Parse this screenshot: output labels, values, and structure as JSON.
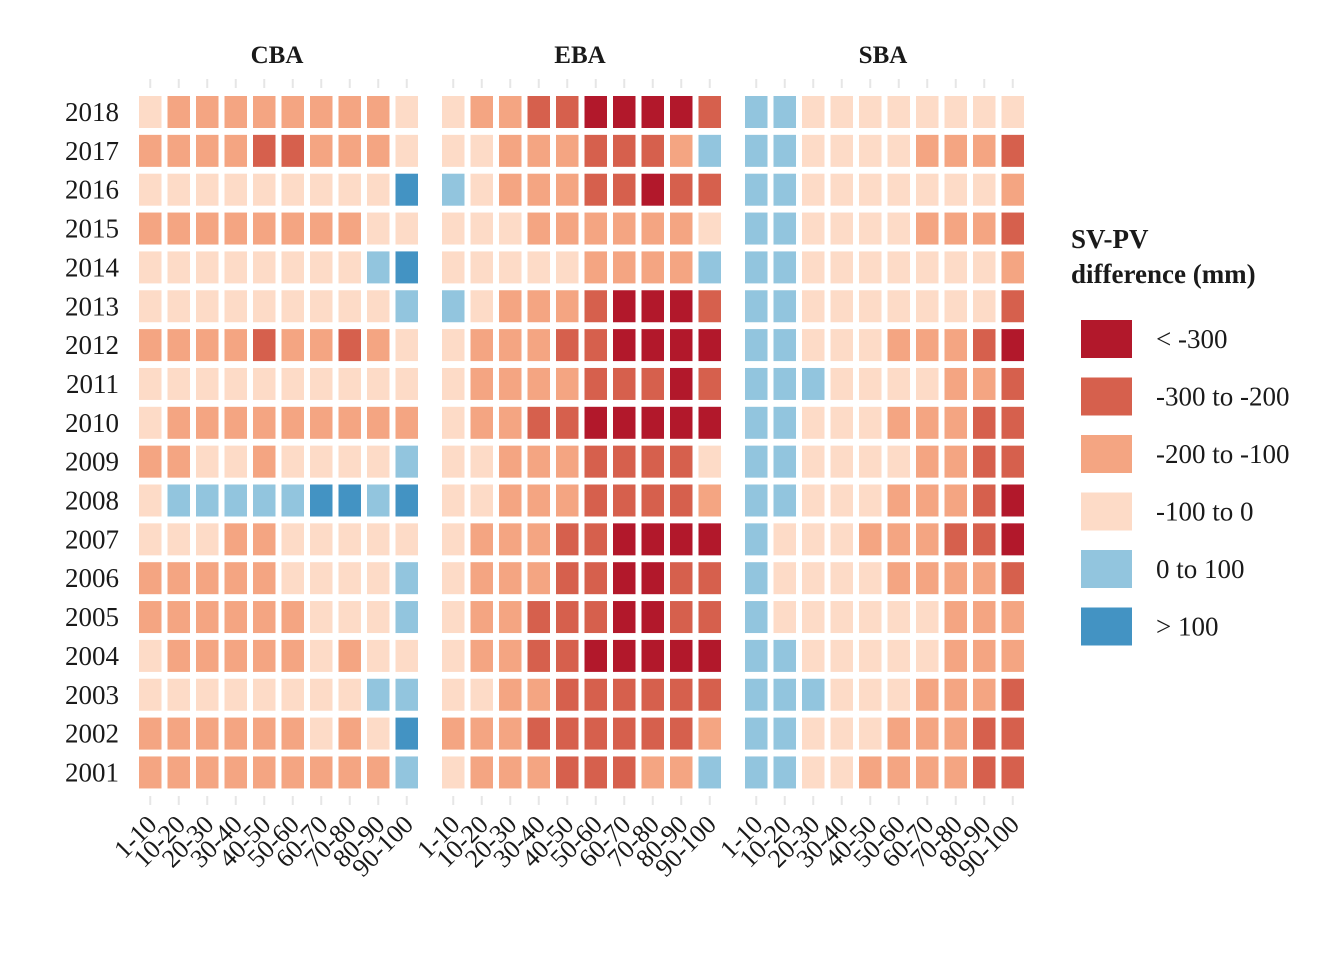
{
  "chart_data": {
    "type": "heatmap",
    "legend": {
      "title_lines": [
        "SV-PV",
        "difference (mm)"
      ],
      "placement": "right",
      "classes": [
        {
          "label": "< -300",
          "color": "#b2182b"
        },
        {
          "label": "-300 to -200",
          "color": "#d6604d"
        },
        {
          "label": "-200 to -100",
          "color": "#f4a582"
        },
        {
          "label": "-100 to 0",
          "color": "#fddbc7"
        },
        {
          "label": "0 to 100",
          "color": "#92c5de"
        },
        {
          "label": "> 100",
          "color": "#4393c3"
        }
      ]
    },
    "years": [
      "2018",
      "2017",
      "2016",
      "2015",
      "2014",
      "2013",
      "2012",
      "2011",
      "2010",
      "2009",
      "2008",
      "2007",
      "2006",
      "2005",
      "2004",
      "2003",
      "2002",
      "2001"
    ],
    "categories": [
      "1-10",
      "10-20",
      "20-30",
      "30-40",
      "40-50",
      "50-60",
      "60-70",
      "70-80",
      "80-90",
      "90-100"
    ],
    "grid": false,
    "facets": [
      {
        "name": "CBA",
        "rows": [
          [
            3,
            2,
            2,
            2,
            2,
            2,
            2,
            2,
            2,
            3
          ],
          [
            2,
            2,
            2,
            2,
            1,
            1,
            2,
            2,
            2,
            3
          ],
          [
            3,
            3,
            3,
            3,
            3,
            3,
            3,
            3,
            3,
            5
          ],
          [
            2,
            2,
            2,
            2,
            2,
            2,
            2,
            2,
            3,
            3
          ],
          [
            3,
            3,
            3,
            3,
            3,
            3,
            3,
            3,
            4,
            5
          ],
          [
            3,
            3,
            3,
            3,
            3,
            3,
            3,
            3,
            3,
            4
          ],
          [
            2,
            2,
            2,
            2,
            1,
            2,
            2,
            1,
            2,
            3
          ],
          [
            3,
            3,
            3,
            3,
            3,
            3,
            3,
            3,
            3,
            3
          ],
          [
            3,
            2,
            2,
            2,
            2,
            2,
            2,
            2,
            2,
            2
          ],
          [
            2,
            2,
            3,
            3,
            2,
            3,
            3,
            3,
            3,
            4
          ],
          [
            3,
            4,
            4,
            4,
            4,
            4,
            5,
            5,
            4,
            5
          ],
          [
            3,
            3,
            3,
            2,
            2,
            3,
            3,
            3,
            3,
            3
          ],
          [
            2,
            2,
            2,
            2,
            2,
            3,
            3,
            3,
            3,
            4
          ],
          [
            2,
            2,
            2,
            2,
            2,
            2,
            3,
            3,
            3,
            4
          ],
          [
            3,
            2,
            2,
            2,
            2,
            2,
            3,
            2,
            3,
            3
          ],
          [
            3,
            3,
            3,
            3,
            3,
            3,
            3,
            3,
            4,
            4
          ],
          [
            2,
            2,
            2,
            2,
            2,
            2,
            3,
            2,
            3,
            5
          ],
          [
            2,
            2,
            2,
            2,
            2,
            2,
            2,
            2,
            2,
            4
          ]
        ]
      },
      {
        "name": "EBA",
        "rows": [
          [
            3,
            2,
            2,
            1,
            1,
            0,
            0,
            0,
            0,
            1
          ],
          [
            3,
            3,
            2,
            2,
            2,
            1,
            1,
            1,
            2,
            4
          ],
          [
            4,
            3,
            2,
            2,
            2,
            1,
            1,
            0,
            1,
            1
          ],
          [
            3,
            3,
            3,
            2,
            2,
            2,
            2,
            2,
            2,
            3
          ],
          [
            3,
            3,
            3,
            3,
            3,
            2,
            2,
            2,
            2,
            4
          ],
          [
            4,
            3,
            2,
            2,
            2,
            1,
            0,
            0,
            0,
            1
          ],
          [
            3,
            2,
            2,
            2,
            1,
            1,
            0,
            0,
            0,
            0
          ],
          [
            3,
            2,
            2,
            2,
            2,
            1,
            1,
            1,
            0,
            1
          ],
          [
            3,
            2,
            2,
            1,
            1,
            0,
            0,
            0,
            0,
            0
          ],
          [
            3,
            3,
            2,
            2,
            2,
            1,
            1,
            1,
            1,
            3
          ],
          [
            3,
            3,
            2,
            2,
            2,
            1,
            1,
            1,
            1,
            2
          ],
          [
            3,
            2,
            2,
            2,
            1,
            1,
            0,
            0,
            0,
            0
          ],
          [
            3,
            2,
            2,
            2,
            1,
            1,
            0,
            0,
            1,
            1
          ],
          [
            3,
            2,
            2,
            1,
            1,
            1,
            0,
            0,
            1,
            1
          ],
          [
            3,
            2,
            2,
            1,
            1,
            0,
            0,
            0,
            0,
            0
          ],
          [
            3,
            3,
            2,
            2,
            1,
            1,
            1,
            1,
            1,
            1
          ],
          [
            2,
            2,
            2,
            1,
            1,
            1,
            1,
            1,
            1,
            2
          ],
          [
            3,
            2,
            2,
            2,
            1,
            1,
            1,
            2,
            2,
            4
          ]
        ]
      },
      {
        "name": "SBA",
        "rows": [
          [
            4,
            4,
            3,
            3,
            3,
            3,
            3,
            3,
            3,
            3
          ],
          [
            4,
            4,
            3,
            3,
            3,
            3,
            2,
            2,
            2,
            1
          ],
          [
            4,
            4,
            3,
            3,
            3,
            3,
            3,
            3,
            3,
            2
          ],
          [
            4,
            4,
            3,
            3,
            3,
            3,
            2,
            2,
            2,
            1
          ],
          [
            4,
            4,
            3,
            3,
            3,
            3,
            3,
            3,
            3,
            2
          ],
          [
            4,
            4,
            3,
            3,
            3,
            3,
            3,
            3,
            3,
            1
          ],
          [
            4,
            4,
            3,
            3,
            3,
            2,
            2,
            2,
            1,
            0
          ],
          [
            4,
            4,
            4,
            3,
            3,
            3,
            3,
            2,
            2,
            1
          ],
          [
            4,
            4,
            3,
            3,
            3,
            2,
            2,
            2,
            1,
            1
          ],
          [
            4,
            4,
            3,
            3,
            3,
            3,
            2,
            2,
            1,
            1
          ],
          [
            4,
            4,
            3,
            3,
            3,
            2,
            2,
            2,
            1,
            0
          ],
          [
            4,
            3,
            3,
            3,
            2,
            2,
            2,
            1,
            1,
            0
          ],
          [
            4,
            3,
            3,
            3,
            3,
            2,
            2,
            2,
            2,
            1
          ],
          [
            4,
            3,
            3,
            3,
            3,
            3,
            3,
            2,
            2,
            2
          ],
          [
            4,
            4,
            3,
            3,
            3,
            3,
            3,
            2,
            2,
            2
          ],
          [
            4,
            4,
            4,
            3,
            3,
            3,
            2,
            2,
            2,
            1
          ],
          [
            4,
            4,
            3,
            3,
            3,
            2,
            2,
            2,
            1,
            1
          ],
          [
            4,
            4,
            3,
            3,
            2,
            2,
            2,
            2,
            1,
            1
          ]
        ]
      }
    ]
  }
}
